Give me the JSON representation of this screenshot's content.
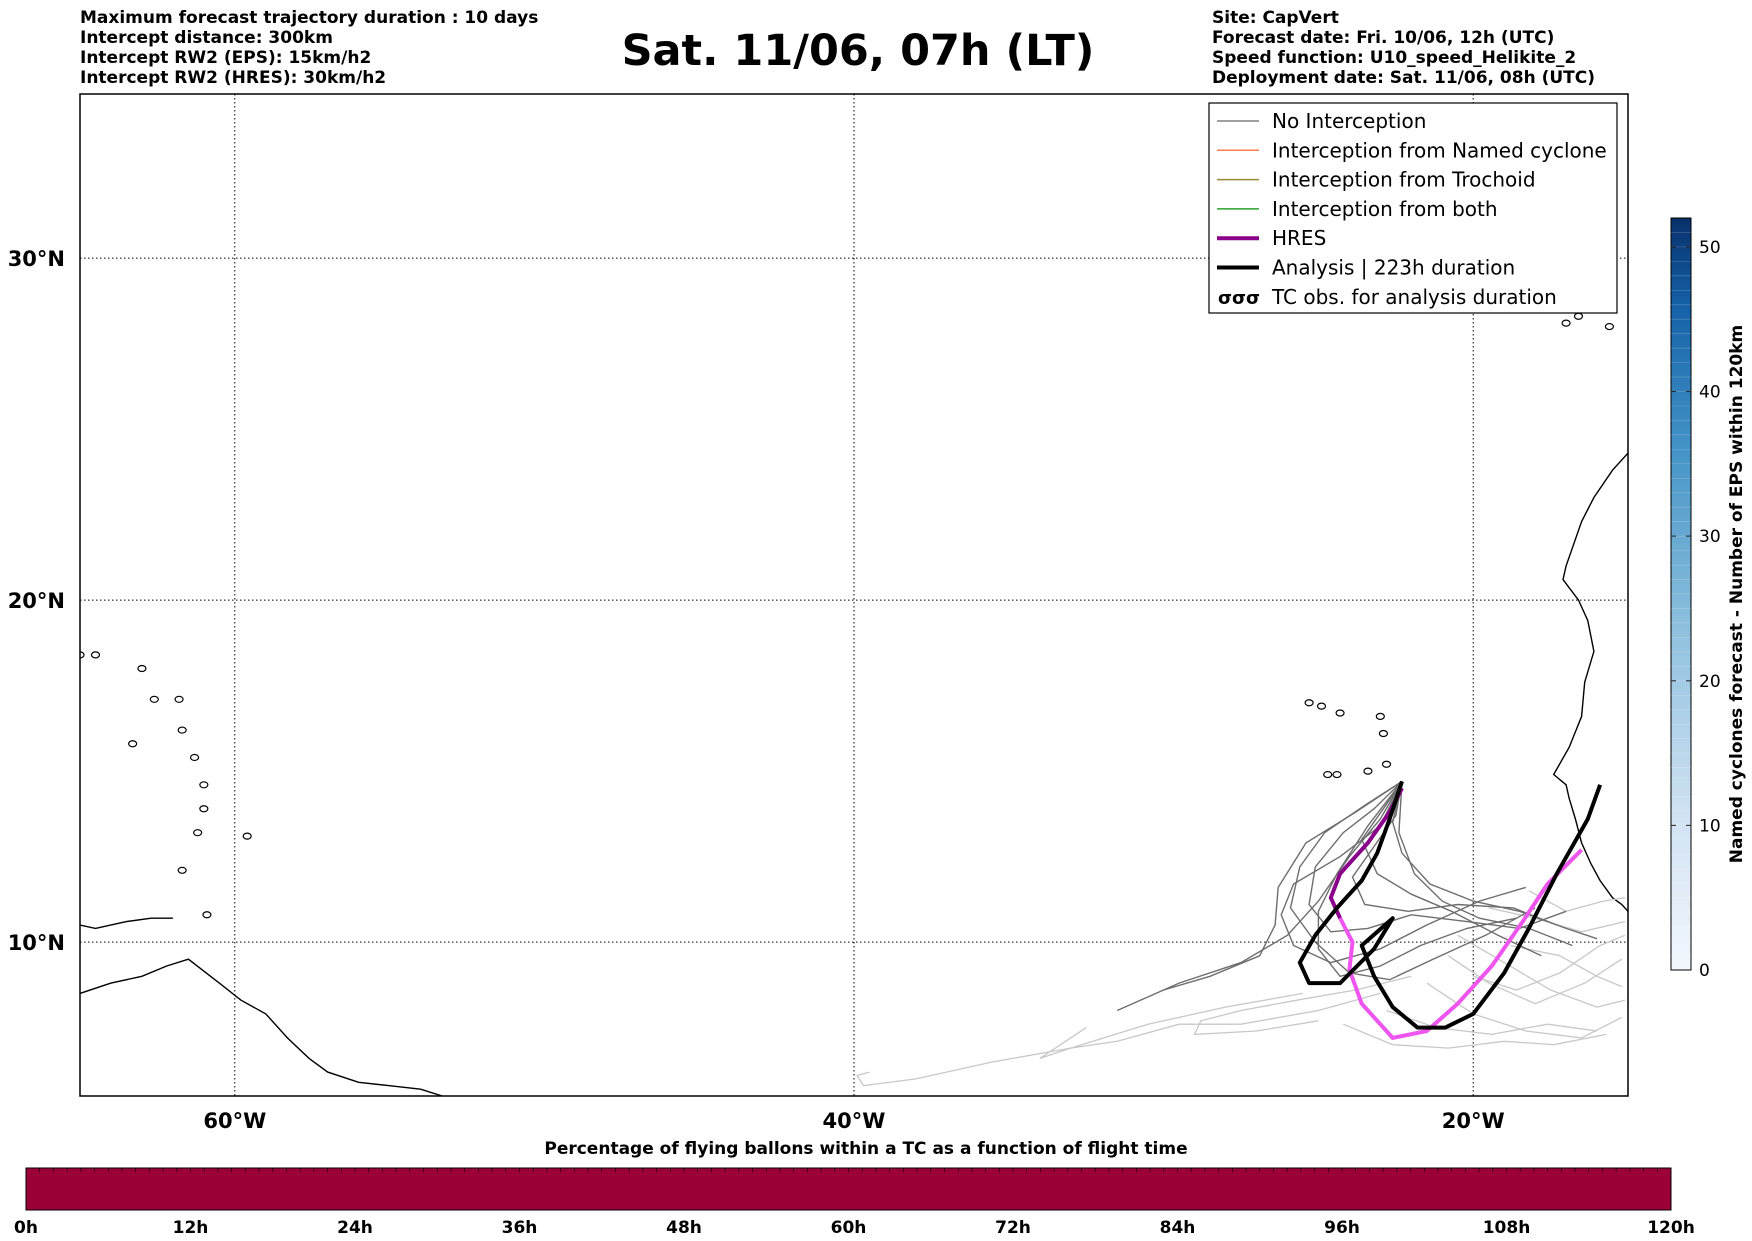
{
  "header": {
    "left_lines": [
      "Maximum forecast trajectory duration : 10 days",
      "Intercept distance: 300km",
      "Intercept RW2 (EPS):  15km/h2",
      "Intercept RW2 (HRES): 30km/h2"
    ],
    "right_lines": [
      "Site: CapVert",
      "Forecast date: Fri. 10/06, 12h (UTC)",
      "Speed function: U10_speed_Helikite_2",
      "Deployment date: Sat. 11/06, 08h (UTC)"
    ],
    "title": "Sat. 11/06, 07h (LT)"
  },
  "map": {
    "lon_range": [
      -65,
      -15
    ],
    "lat_range": [
      5.5,
      34.8
    ],
    "lat_ticks": [
      {
        "value": 30,
        "label": "30°N"
      },
      {
        "value": 20,
        "label": "20°N"
      },
      {
        "value": 10,
        "label": "10°N"
      }
    ],
    "lon_ticks": [
      {
        "value": -60,
        "label": "60°W"
      },
      {
        "value": -40,
        "label": "40°W"
      },
      {
        "value": -20,
        "label": "20°W"
      }
    ],
    "colors": {
      "no_interception": "#6e6e6e",
      "ensemble_light": "#c8c8c8",
      "named_cyclone": "#ff7f50",
      "trochoid": "#9a8a3a",
      "both": "#2ca02c",
      "hres": "#8b008b",
      "hres_track": "#ee55ee",
      "analysis": "#000000",
      "balloon_bar": "#9c0039"
    }
  },
  "legend": {
    "items": [
      {
        "label": "No Interception",
        "kind": "line-thin",
        "color": "#808080"
      },
      {
        "label": "Interception from Named cyclone",
        "kind": "line-thin",
        "color": "#ff7f50"
      },
      {
        "label": "Interception from Trochoid",
        "kind": "line-thin",
        "color": "#9a8a3a"
      },
      {
        "label": "Interception from both",
        "kind": "line-thin",
        "color": "#2ca02c"
      },
      {
        "label": "HRES",
        "kind": "line-thick",
        "color": "#8b008b"
      },
      {
        "label": "Analysis | 223h duration",
        "kind": "line-thick",
        "color": "#000000"
      },
      {
        "label": "TC obs. for analysis duration",
        "kind": "tc-symbols",
        "color": "#000000"
      }
    ]
  },
  "colorbar_right": {
    "label": "Named cyclones forecast - Number of EPS within 120km",
    "ticks": [
      0,
      10,
      20,
      30,
      40,
      50
    ],
    "max": 52
  },
  "colorbar_bottom": {
    "label": "Percentage of flying ballons within a TC as a function of flight time",
    "ticks": [
      "0h",
      "12h",
      "24h",
      "36h",
      "48h",
      "60h",
      "72h",
      "84h",
      "96h",
      "108h",
      "120h"
    ]
  },
  "tracks": {
    "hres": [
      [
        -22.3,
        14.5
      ],
      [
        -22.7,
        13.8
      ],
      [
        -23.4,
        12.9
      ],
      [
        -24.3,
        12.0
      ],
      [
        -24.6,
        11.3
      ],
      [
        -24.3,
        10.7
      ],
      [
        -23.9,
        10.0
      ],
      [
        -24.0,
        9.2
      ],
      [
        -23.6,
        8.2
      ],
      [
        -22.6,
        7.2
      ],
      [
        -21.5,
        7.4
      ],
      [
        -20.5,
        8.2
      ],
      [
        -19.4,
        9.3
      ],
      [
        -18.4,
        10.6
      ],
      [
        -17.6,
        11.7
      ],
      [
        -16.5,
        12.7
      ]
    ],
    "analysis": [
      [
        -22.3,
        14.7
      ],
      [
        -22.7,
        13.6
      ],
      [
        -23.1,
        12.6
      ],
      [
        -23.6,
        11.8
      ],
      [
        -24.4,
        11.0
      ],
      [
        -25.1,
        10.2
      ],
      [
        -25.6,
        9.4
      ],
      [
        -25.3,
        8.8
      ],
      [
        -24.3,
        8.8
      ],
      [
        -23.2,
        9.8
      ],
      [
        -22.6,
        10.7
      ],
      [
        -23.6,
        9.9
      ],
      [
        -23.2,
        9.0
      ],
      [
        -22.6,
        8.1
      ],
      [
        -21.8,
        7.5
      ],
      [
        -20.9,
        7.5
      ],
      [
        -20.0,
        7.9
      ],
      [
        -19.0,
        9.1
      ],
      [
        -18.2,
        10.4
      ],
      [
        -17.3,
        12.0
      ],
      [
        -16.3,
        13.6
      ],
      [
        -15.9,
        14.6
      ]
    ],
    "ensemble_dark": [
      [
        [
          -22.3,
          14.7
        ],
        [
          -23.0,
          13.6
        ],
        [
          -24.0,
          12.5
        ],
        [
          -25.0,
          11.2
        ],
        [
          -26.0,
          10.2
        ],
        [
          -27.5,
          9.4
        ],
        [
          -29.5,
          8.8
        ],
        [
          -31.5,
          8.0
        ]
      ],
      [
        [
          -22.3,
          14.7
        ],
        [
          -23.2,
          13.9
        ],
        [
          -24.2,
          13.2
        ],
        [
          -25.1,
          12.2
        ],
        [
          -25.3,
          11.1
        ],
        [
          -24.6,
          10.3
        ],
        [
          -23.4,
          10.4
        ],
        [
          -22.0,
          10.8
        ],
        [
          -20.2,
          10.6
        ],
        [
          -18.5,
          10.4
        ],
        [
          -17.0,
          10.9
        ]
      ],
      [
        [
          -22.3,
          14.7
        ],
        [
          -22.5,
          13.7
        ],
        [
          -23.2,
          12.8
        ],
        [
          -23.9,
          11.9
        ],
        [
          -23.5,
          11.1
        ],
        [
          -22.1,
          10.9
        ],
        [
          -20.5,
          11.1
        ],
        [
          -18.7,
          11.0
        ],
        [
          -17.3,
          10.5
        ]
      ],
      [
        [
          -22.3,
          14.7
        ],
        [
          -23.0,
          13.4
        ],
        [
          -24.3,
          12.5
        ],
        [
          -25.8,
          11.7
        ],
        [
          -26.2,
          10.8
        ],
        [
          -25.8,
          9.9
        ],
        [
          -24.6,
          9.4
        ],
        [
          -23.0,
          9.8
        ],
        [
          -21.5,
          10.5
        ],
        [
          -19.8,
          11.2
        ],
        [
          -18.3,
          11.6
        ]
      ],
      [
        [
          -22.3,
          14.7
        ],
        [
          -22.6,
          13.5
        ],
        [
          -22.3,
          12.6
        ],
        [
          -21.4,
          11.7
        ],
        [
          -20.0,
          11.2
        ],
        [
          -18.5,
          10.9
        ],
        [
          -17.0,
          10.4
        ],
        [
          -16.0,
          10.1
        ]
      ],
      [
        [
          -22.3,
          14.7
        ],
        [
          -23.4,
          13.4
        ],
        [
          -24.4,
          12.0
        ],
        [
          -25.0,
          10.9
        ],
        [
          -25.0,
          9.8
        ],
        [
          -24.3,
          9.0
        ],
        [
          -23.0,
          9.3
        ],
        [
          -21.7,
          9.9
        ],
        [
          -20.2,
          10.4
        ],
        [
          -18.6,
          10.7
        ]
      ],
      [
        [
          -22.3,
          14.7
        ],
        [
          -22.4,
          13.2
        ],
        [
          -21.9,
          12.0
        ],
        [
          -21.0,
          11.2
        ],
        [
          -19.8,
          10.7
        ],
        [
          -18.2,
          10.4
        ],
        [
          -16.8,
          9.9
        ]
      ],
      [
        [
          -22.3,
          14.7
        ],
        [
          -23.8,
          13.8
        ],
        [
          -25.4,
          12.9
        ],
        [
          -26.3,
          11.6
        ],
        [
          -26.4,
          10.5
        ],
        [
          -26.9,
          9.6
        ],
        [
          -28.5,
          9.0
        ],
        [
          -30.0,
          8.6
        ]
      ],
      [
        [
          -22.3,
          14.7
        ],
        [
          -22.9,
          13.9
        ],
        [
          -23.6,
          13.0
        ],
        [
          -23.1,
          12.0
        ],
        [
          -22.0,
          11.4
        ],
        [
          -20.7,
          10.9
        ],
        [
          -19.2,
          10.2
        ],
        [
          -17.8,
          9.6
        ]
      ],
      [
        [
          -22.3,
          14.7
        ],
        [
          -23.5,
          14.0
        ],
        [
          -24.8,
          13.2
        ],
        [
          -25.6,
          12.2
        ],
        [
          -25.9,
          11.0
        ],
        [
          -25.1,
          10.0
        ],
        [
          -24.0,
          9.1
        ],
        [
          -22.7,
          8.9
        ],
        [
          -21.3,
          9.5
        ],
        [
          -19.6,
          10.2
        ],
        [
          -18.0,
          11.0
        ]
      ]
    ],
    "ensemble_light": [
      [
        [
          -25.5,
          8.5
        ],
        [
          -28.0,
          8.1
        ],
        [
          -30.5,
          7.6
        ],
        [
          -33.0,
          6.9
        ],
        [
          -35.5,
          6.5
        ],
        [
          -38.0,
          6.0
        ],
        [
          -39.7,
          5.8
        ],
        [
          -39.9,
          6.1
        ],
        [
          -39.5,
          6.2
        ]
      ],
      [
        [
          -23.0,
          8.5
        ],
        [
          -25.0,
          8.0
        ],
        [
          -27.5,
          7.6
        ],
        [
          -29.5,
          7.6
        ],
        [
          -31.5,
          7.1
        ],
        [
          -33.0,
          6.9
        ],
        [
          -34.0,
          6.6
        ],
        [
          -32.5,
          7.5
        ]
      ],
      [
        [
          -22.0,
          9.0
        ],
        [
          -23.8,
          8.6
        ],
        [
          -25.7,
          8.3
        ],
        [
          -27.5,
          8.0
        ],
        [
          -28.8,
          7.7
        ],
        [
          -29.0,
          7.3
        ],
        [
          -27.0,
          7.4
        ],
        [
          -25.0,
          7.7
        ]
      ],
      [
        [
          -20.5,
          10.2
        ],
        [
          -19.0,
          9.4
        ],
        [
          -17.5,
          8.6
        ],
        [
          -16.0,
          8.1
        ],
        [
          -15.1,
          8.3
        ]
      ],
      [
        [
          -20.8,
          9.6
        ],
        [
          -19.5,
          8.8
        ],
        [
          -18.0,
          8.2
        ],
        [
          -16.4,
          8.8
        ],
        [
          -15.2,
          9.5
        ]
      ],
      [
        [
          -21.5,
          8.8
        ],
        [
          -20.0,
          7.9
        ],
        [
          -18.3,
          7.4
        ],
        [
          -16.5,
          7.2
        ],
        [
          -15.2,
          7.8
        ]
      ],
      [
        [
          -19.5,
          11.0
        ],
        [
          -18.0,
          10.7
        ],
        [
          -16.5,
          10.3
        ],
        [
          -15.1,
          10.6
        ]
      ],
      [
        [
          -22.8,
          8.0
        ],
        [
          -21.2,
          7.5
        ],
        [
          -19.4,
          7.3
        ],
        [
          -17.6,
          7.6
        ],
        [
          -16.0,
          7.4
        ]
      ],
      [
        [
          -18.8,
          9.9
        ],
        [
          -17.2,
          9.6
        ],
        [
          -16.0,
          9.0
        ],
        [
          -15.2,
          8.7
        ]
      ],
      [
        [
          -20.0,
          9.0
        ],
        [
          -18.6,
          8.6
        ],
        [
          -17.2,
          9.1
        ],
        [
          -15.9,
          9.9
        ],
        [
          -15.1,
          10.2
        ]
      ],
      [
        [
          -24.2,
          7.6
        ],
        [
          -22.6,
          7.0
        ],
        [
          -20.8,
          6.9
        ],
        [
          -19.0,
          7.1
        ],
        [
          -17.4,
          7.0
        ],
        [
          -15.7,
          7.3
        ]
      ],
      [
        [
          -18.2,
          11.5
        ],
        [
          -17.0,
          10.9
        ],
        [
          -15.8,
          11.2
        ],
        [
          -15.1,
          11.3
        ]
      ]
    ]
  },
  "coasts": [
    [
      [
        -15.0,
        24.3
      ],
      [
        -15.5,
        23.8
      ],
      [
        -16.1,
        23.0
      ],
      [
        -16.5,
        22.3
      ],
      [
        -17.0,
        21.0
      ],
      [
        -17.1,
        20.6
      ],
      [
        -16.6,
        20.0
      ],
      [
        -16.3,
        19.4
      ],
      [
        -16.1,
        18.5
      ],
      [
        -16.4,
        17.6
      ],
      [
        -16.5,
        16.6
      ],
      [
        -16.9,
        15.7
      ],
      [
        -17.4,
        14.9
      ],
      [
        -17.0,
        14.6
      ],
      [
        -16.9,
        14.2
      ],
      [
        -16.7,
        13.6
      ],
      [
        -16.5,
        12.9
      ],
      [
        -16.2,
        12.3
      ],
      [
        -15.9,
        11.8
      ],
      [
        -15.5,
        11.3
      ],
      [
        -15.2,
        11.1
      ],
      [
        -15.0,
        10.9
      ]
    ],
    [
      [
        -65.0,
        8.5
      ],
      [
        -64.0,
        8.8
      ],
      [
        -63.0,
        9.0
      ],
      [
        -62.2,
        9.3
      ],
      [
        -61.5,
        9.5
      ],
      [
        -60.5,
        8.8
      ],
      [
        -59.8,
        8.3
      ],
      [
        -59.0,
        7.9
      ],
      [
        -58.3,
        7.2
      ],
      [
        -57.6,
        6.6
      ],
      [
        -57.0,
        6.2
      ],
      [
        -56.0,
        5.9
      ],
      [
        -55.0,
        5.8
      ],
      [
        -54.0,
        5.7
      ],
      [
        -53.3,
        5.5
      ]
    ],
    [
      [
        -65.0,
        10.5
      ],
      [
        -64.5,
        10.4
      ],
      [
        -63.5,
        10.6
      ],
      [
        -62.7,
        10.7
      ],
      [
        -62.0,
        10.7
      ]
    ]
  ],
  "islands": [
    [
      -24.9,
      16.9
    ],
    [
      -25.3,
      17.0
    ],
    [
      -24.3,
      16.7
    ],
    [
      -23.0,
      16.6
    ],
    [
      -22.9,
      16.1
    ],
    [
      -22.8,
      15.2
    ],
    [
      -23.4,
      15.0
    ],
    [
      -24.4,
      14.9
    ],
    [
      -24.7,
      14.9
    ],
    [
      -16.6,
      28.3
    ],
    [
      -15.6,
      28.0
    ],
    [
      -14.0,
      28.5
    ],
    [
      -13.6,
      29.0
    ],
    [
      -17.0,
      28.1
    ],
    [
      -17.8,
      28.6
    ],
    [
      -61.7,
      12.1
    ],
    [
      -61.2,
      13.2
    ],
    [
      -61.0,
      13.9
    ],
    [
      -61.0,
      14.6
    ],
    [
      -61.3,
      15.4
    ],
    [
      -61.7,
      16.2
    ],
    [
      -62.6,
      17.1
    ],
    [
      -63.0,
      18.0
    ],
    [
      -61.8,
      17.1
    ],
    [
      -60.9,
      10.8
    ],
    [
      -59.6,
      13.1
    ],
    [
      -64.5,
      18.4
    ],
    [
      -65.0,
      18.4
    ],
    [
      -63.3,
      15.8
    ]
  ]
}
